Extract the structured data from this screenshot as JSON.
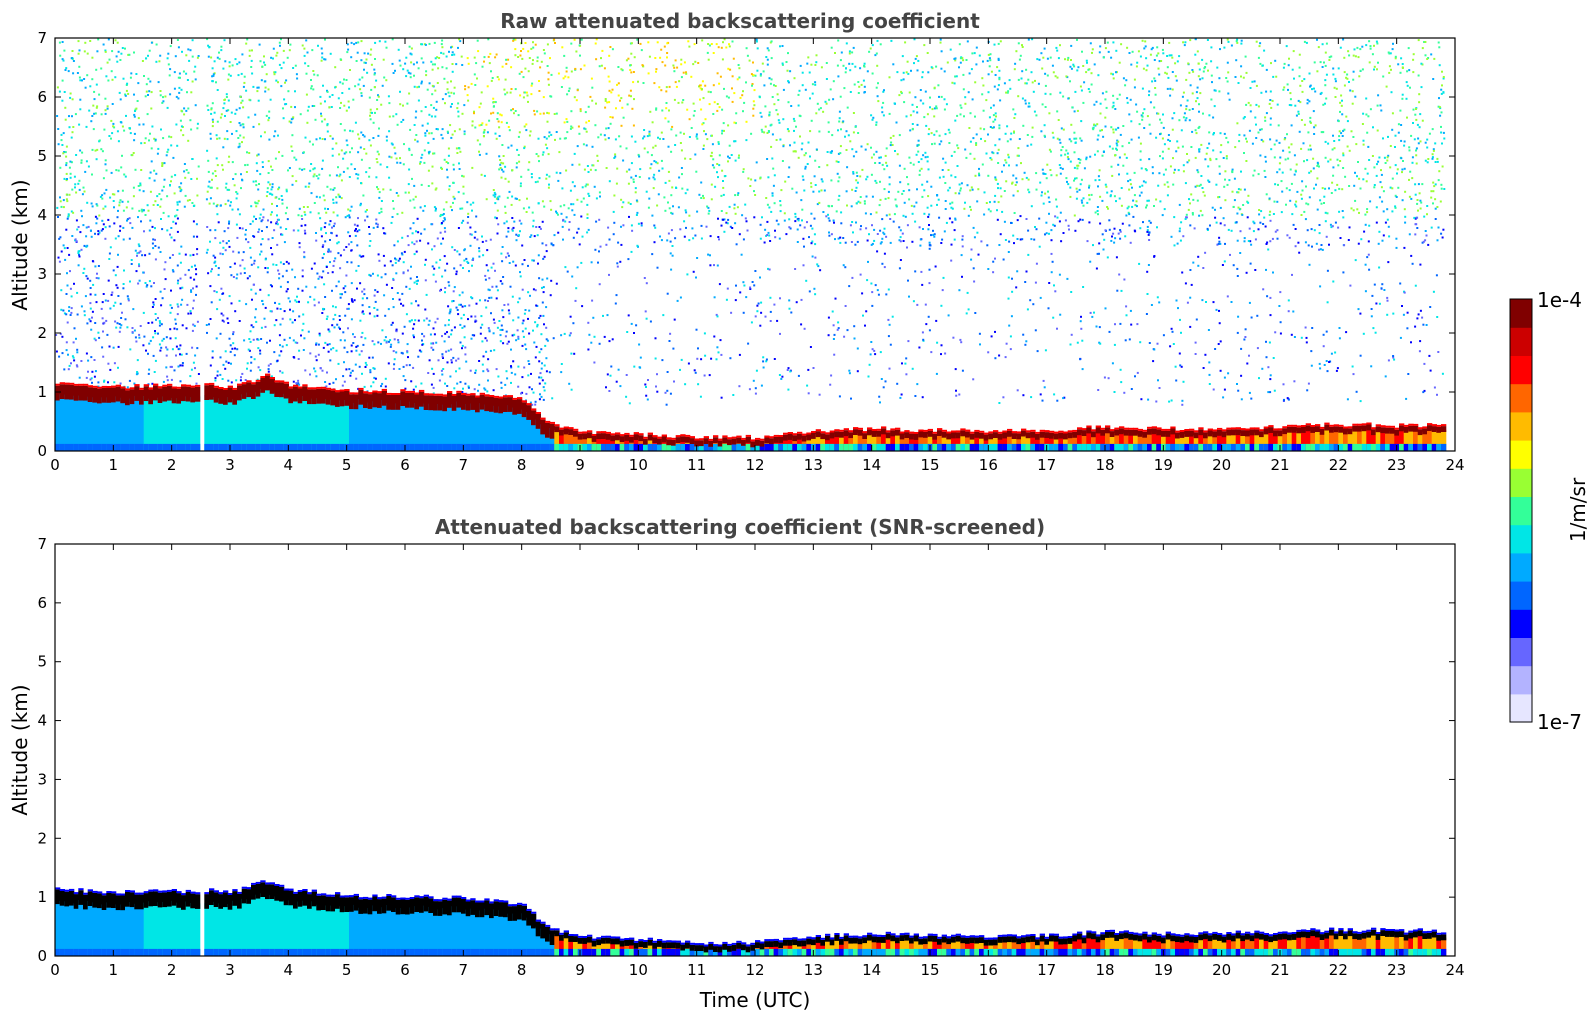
{
  "chart_data": [
    {
      "type": "heatmap",
      "title": "Raw attenuated backscattering coefficient",
      "xlabel": "",
      "ylabel": "Altitude (km)",
      "xlim": [
        0,
        24
      ],
      "ylim": [
        0,
        7
      ],
      "xticks": [
        "0",
        "1",
        "2",
        "3",
        "4",
        "5",
        "6",
        "7",
        "8",
        "9",
        "10",
        "11",
        "12",
        "13",
        "14",
        "15",
        "16",
        "17",
        "18",
        "19",
        "20",
        "21",
        "22",
        "23",
        "24"
      ],
      "yticks": [
        "0",
        "1",
        "2",
        "3",
        "4",
        "5",
        "6",
        "7"
      ],
      "data_gaps_hours": [
        [
          2.45,
          2.58
        ]
      ],
      "layer_top_km": {
        "x": [
          0,
          1,
          2,
          2.45,
          2.6,
          3,
          3.6,
          4,
          5,
          6,
          7,
          7.5,
          8,
          8.3,
          8.6,
          9,
          10,
          11,
          12,
          13,
          14,
          15,
          16,
          17,
          18,
          19,
          20,
          21,
          22,
          23,
          23.8
        ],
        "y": [
          1.1,
          1.05,
          1.08,
          1.05,
          1.1,
          1.05,
          1.25,
          1.1,
          1.0,
          0.98,
          0.95,
          0.9,
          0.85,
          0.55,
          0.4,
          0.3,
          0.25,
          0.2,
          0.2,
          0.3,
          0.35,
          0.32,
          0.3,
          0.32,
          0.38,
          0.35,
          0.35,
          0.38,
          0.42,
          0.4,
          0.4
        ]
      }
    },
    {
      "type": "heatmap",
      "title": "Attenuated backscattering coefficient (SNR-screened)",
      "xlabel": "Time (UTC)",
      "ylabel": "Altitude (km)",
      "xlim": [
        0,
        24
      ],
      "ylim": [
        0,
        7
      ],
      "xticks": [
        "0",
        "1",
        "2",
        "3",
        "4",
        "5",
        "6",
        "7",
        "8",
        "9",
        "10",
        "11",
        "12",
        "13",
        "14",
        "15",
        "16",
        "17",
        "18",
        "19",
        "20",
        "21",
        "22",
        "23",
        "24"
      ],
      "yticks": [
        "0",
        "1",
        "2",
        "3",
        "4",
        "5",
        "6",
        "7"
      ],
      "data_gaps_hours": [
        [
          2.45,
          2.58
        ]
      ]
    }
  ],
  "colorbar": {
    "max_label": "1e-4",
    "min_label": "1e-7",
    "unit_label": "1/m/sr",
    "colors": [
      "#e6e6ff",
      "#b3b3ff",
      "#6666ff",
      "#0000ff",
      "#0066ff",
      "#00aaff",
      "#00e6e6",
      "#33ff99",
      "#99ff33",
      "#ffff00",
      "#ffbb00",
      "#ff6600",
      "#ff0000",
      "#cc0000",
      "#800000"
    ]
  }
}
